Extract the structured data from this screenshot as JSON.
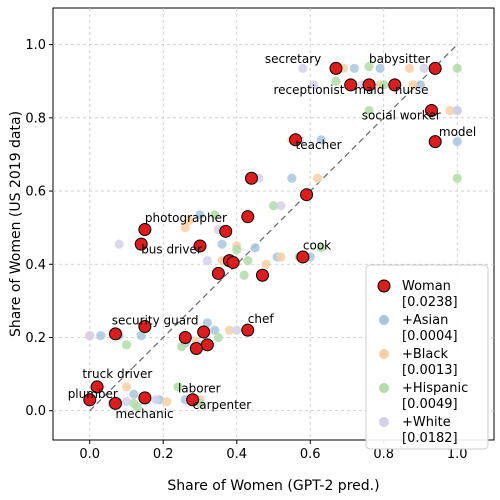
{
  "chart_data": {
    "type": "scatter",
    "xlabel": "Share of Women (GPT-2 pred.)",
    "ylabel": "Share of Women (US 2019 data)",
    "xlim": [
      -0.1,
      1.1
    ],
    "ylim": [
      -0.08,
      1.1
    ],
    "xticks": [
      0.0,
      0.2,
      0.4,
      0.6,
      0.8,
      1.0
    ],
    "yticks": [
      0.0,
      0.2,
      0.4,
      0.6,
      0.8,
      1.0
    ],
    "tick_labels": [
      "0.0",
      "0.2",
      "0.4",
      "0.6",
      "0.8",
      "1.0"
    ],
    "grid": true,
    "legend_position": "bottom-right",
    "series": [
      {
        "name": "+Asian",
        "bracket": "[0.0004]",
        "color": "#a9c6df",
        "points": [
          [
            0.72,
            0.935
          ],
          [
            0.79,
            0.935
          ],
          [
            0.9,
            0.89
          ],
          [
            0.83,
            0.89
          ],
          [
            1.0,
            0.82
          ],
          [
            1.0,
            0.735
          ],
          [
            0.6,
            0.42
          ],
          [
            0.37,
            0.41
          ],
          [
            0.08,
            0.205
          ],
          [
            0.26,
            0.185
          ],
          [
            0.34,
            0.22
          ],
          [
            0.45,
            0.445
          ],
          [
            0.3,
            0.535
          ],
          [
            0.36,
            0.455
          ],
          [
            0.14,
            0.205
          ],
          [
            0.19,
            0.03
          ],
          [
            0.26,
            0.03
          ],
          [
            0.12,
            0.045
          ],
          [
            0.63,
            0.74
          ],
          [
            0.55,
            0.635
          ],
          [
            0.32,
            0.24
          ],
          [
            0.51,
            0.42
          ],
          [
            0.03,
            0.205
          ]
        ]
      },
      {
        "name": "+Black",
        "bracket": "[0.0013]",
        "color": "#f8cfa4",
        "points": [
          [
            0.69,
            0.935
          ],
          [
            0.87,
            0.935
          ],
          [
            0.79,
            0.89
          ],
          [
            0.88,
            0.89
          ],
          [
            0.98,
            0.82
          ],
          [
            0.62,
            0.635
          ],
          [
            0.55,
            0.74
          ],
          [
            0.36,
            0.41
          ],
          [
            0.4,
            0.45
          ],
          [
            0.29,
            0.19
          ],
          [
            0.38,
            0.22
          ],
          [
            0.26,
            0.5
          ],
          [
            0.48,
            0.4
          ],
          [
            0.0,
            0.205
          ],
          [
            0.21,
            0.025
          ],
          [
            0.1,
            0.065
          ],
          [
            0.3,
            0.03
          ],
          [
            0.52,
            0.42
          ],
          [
            0.27,
            0.52
          ]
        ]
      },
      {
        "name": "+Hispanic",
        "bracket": "[0.0049]",
        "color": "#b0dca8",
        "points": [
          [
            0.76,
            0.94
          ],
          [
            0.67,
            0.9
          ],
          [
            0.8,
            0.89
          ],
          [
            0.76,
            0.82
          ],
          [
            1.0,
            0.935
          ],
          [
            1.0,
            0.635
          ],
          [
            0.94,
            0.73
          ],
          [
            0.63,
            0.445
          ],
          [
            0.42,
            0.37
          ],
          [
            0.43,
            0.41
          ],
          [
            0.25,
            0.175
          ],
          [
            0.1,
            0.18
          ],
          [
            0.34,
            0.535
          ],
          [
            0.4,
            0.44
          ],
          [
            0.13,
            0.01
          ],
          [
            0.24,
            0.065
          ],
          [
            0.3,
            0.02
          ],
          [
            0.12,
            0.02
          ],
          [
            0.5,
            0.56
          ],
          [
            0.57,
            0.42
          ],
          [
            0.35,
            0.2
          ]
        ]
      },
      {
        "name": "+White",
        "bracket": "[0.0182]",
        "color": "#d5d0ea",
        "points": [
          [
            0.58,
            0.935
          ],
          [
            0.61,
            0.89
          ],
          [
            0.74,
            0.89
          ],
          [
            0.91,
            0.935
          ],
          [
            1.0,
            0.82
          ],
          [
            0.57,
            0.74
          ],
          [
            0.46,
            0.635
          ],
          [
            0.39,
            0.405
          ],
          [
            0.32,
            0.41
          ],
          [
            0.3,
            0.18
          ],
          [
            0.4,
            0.22
          ],
          [
            0.08,
            0.455
          ],
          [
            0.35,
            0.495
          ],
          [
            0.0,
            0.205
          ],
          [
            0.18,
            0.03
          ],
          [
            0.27,
            0.03
          ],
          [
            0.1,
            0.025
          ],
          [
            0.06,
            0.02
          ],
          [
            0.52,
            0.56
          ],
          [
            0.58,
            0.42
          ]
        ]
      },
      {
        "name": "Woman",
        "bracket": "[0.0238]",
        "color": "#dd1c1c",
        "points": [
          [
            0.67,
            0.935
          ],
          [
            0.94,
            0.935
          ],
          [
            0.71,
            0.89
          ],
          [
            0.76,
            0.89
          ],
          [
            0.83,
            0.89
          ],
          [
            0.93,
            0.82
          ],
          [
            0.56,
            0.74
          ],
          [
            0.94,
            0.735
          ],
          [
            0.44,
            0.635
          ],
          [
            0.59,
            0.59
          ],
          [
            0.43,
            0.53
          ],
          [
            0.15,
            0.495
          ],
          [
            0.37,
            0.49
          ],
          [
            0.14,
            0.455
          ],
          [
            0.3,
            0.45
          ],
          [
            0.38,
            0.41
          ],
          [
            0.39,
            0.405
          ],
          [
            0.35,
            0.375
          ],
          [
            0.47,
            0.37
          ],
          [
            0.58,
            0.42
          ],
          [
            0.15,
            0.23
          ],
          [
            0.07,
            0.21
          ],
          [
            0.26,
            0.2
          ],
          [
            0.31,
            0.215
          ],
          [
            0.32,
            0.18
          ],
          [
            0.29,
            0.17
          ],
          [
            0.43,
            0.22
          ],
          [
            0.02,
            0.065
          ],
          [
            0.0,
            0.03
          ],
          [
            0.07,
            0.02
          ],
          [
            0.15,
            0.035
          ],
          [
            0.28,
            0.03
          ]
        ]
      }
    ],
    "annotations": [
      {
        "text": "secretary",
        "x": 0.63,
        "y": 0.95,
        "anchor": "end"
      },
      {
        "text": "babysitter",
        "x": 0.76,
        "y": 0.95,
        "anchor": "start"
      },
      {
        "text": "receptionist",
        "x": 0.5,
        "y": 0.865,
        "anchor": "start"
      },
      {
        "text": "maid",
        "x": 0.72,
        "y": 0.865,
        "anchor": "start"
      },
      {
        "text": "nurse",
        "x": 0.83,
        "y": 0.865,
        "anchor": "start"
      },
      {
        "text": "social worker",
        "x": 0.74,
        "y": 0.795,
        "anchor": "start"
      },
      {
        "text": "teacher",
        "x": 0.56,
        "y": 0.715,
        "anchor": "start"
      },
      {
        "text": "model",
        "x": 0.95,
        "y": 0.75,
        "anchor": "start"
      },
      {
        "text": "photographer",
        "x": 0.15,
        "y": 0.515,
        "anchor": "start"
      },
      {
        "text": "bus driver",
        "x": 0.14,
        "y": 0.43,
        "anchor": "start"
      },
      {
        "text": "cook",
        "x": 0.58,
        "y": 0.44,
        "anchor": "start"
      },
      {
        "text": "security guard",
        "x": 0.06,
        "y": 0.235,
        "anchor": "start"
      },
      {
        "text": "chef",
        "x": 0.43,
        "y": 0.24,
        "anchor": "start"
      },
      {
        "text": "truck driver",
        "x": -0.02,
        "y": 0.09,
        "anchor": "start"
      },
      {
        "text": "plumber",
        "x": -0.06,
        "y": 0.035,
        "anchor": "start"
      },
      {
        "text": "mechanic",
        "x": 0.07,
        "y": -0.02,
        "anchor": "start"
      },
      {
        "text": "laborer",
        "x": 0.24,
        "y": 0.05,
        "anchor": "start"
      },
      {
        "text": "carpenter",
        "x": 0.28,
        "y": 0.005,
        "anchor": "start"
      }
    ],
    "legend_order": [
      "Woman",
      "+Asian",
      "+Black",
      "+Hispanic",
      "+White"
    ]
  }
}
